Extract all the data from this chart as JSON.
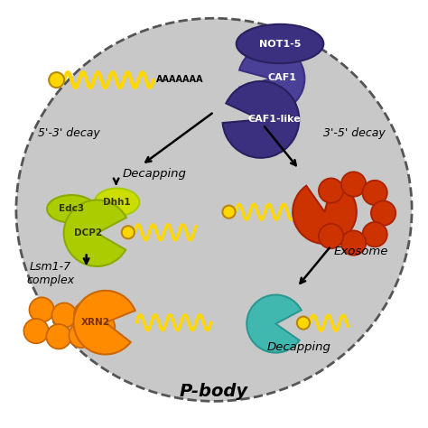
{
  "title": "P-body",
  "colors": {
    "background_color": "#c8c8c8",
    "ellipse_border": "#555555",
    "yellow": "#FFD700",
    "yellow_green": "#AACC00",
    "yellow_green2": "#CCDD00",
    "orange": "#FF8C00",
    "orange_edge": "#CC6600",
    "red_orange": "#CC3300",
    "red_orange_edge": "#AA2200",
    "purple_dark": "#3B3080",
    "purple_dark_edge": "#2a2060",
    "purple_mid": "#4B4098",
    "teal": "#40B8B0",
    "teal_edge": "#2A9890",
    "mRNA_yellow": "#FFD700",
    "cap_edge": "#B8860B",
    "white": "#FFFFFF",
    "black": "#000000",
    "yg_text": "#333300",
    "orange_text": "#7A3000"
  },
  "labels": {
    "NOT1_5": "NOT1-5",
    "CAF1": "CAF1",
    "CAF1like": "CAF1-like",
    "decay53": "5'-3' decay",
    "decay35": "3'-5' decay",
    "decapping_top": "Decapping",
    "Edc3": "Edc3",
    "Dhh1": "Dhh1",
    "DCP2": "DCP2",
    "exosome": "Exosome",
    "lsm17": "Lsm1-7\ncomplex",
    "XRN2": "XRN2",
    "decapping_bot": "Decapping",
    "AAAAAAA": "AAAAAAA"
  }
}
